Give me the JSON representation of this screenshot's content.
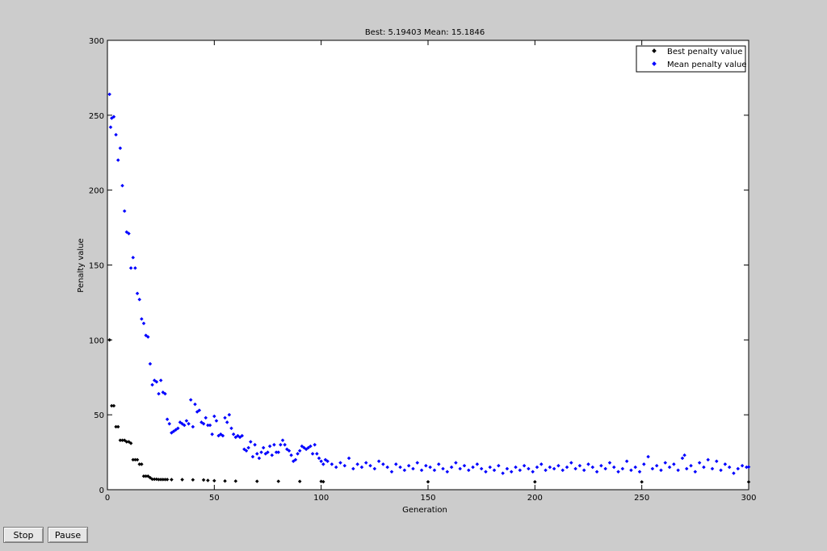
{
  "chart_data": {
    "type": "scatter",
    "title": "Best: 5.19403 Mean: 15.1846",
    "xlabel": "Generation",
    "ylabel": "Penalty value",
    "xlim": [
      0,
      300
    ],
    "ylim": [
      0,
      300
    ],
    "xticks": [
      0,
      50,
      100,
      150,
      200,
      250,
      300
    ],
    "yticks": [
      0,
      50,
      100,
      150,
      200,
      250,
      300
    ],
    "grid": false,
    "legend_position": "top-right",
    "series": [
      {
        "name": "Best penalty value",
        "color": "#000000",
        "points": [
          [
            1,
            100
          ],
          [
            2,
            56
          ],
          [
            3,
            56
          ],
          [
            4,
            42
          ],
          [
            5,
            42
          ],
          [
            6,
            33
          ],
          [
            7,
            33
          ],
          [
            8,
            33
          ],
          [
            9,
            32
          ],
          [
            10,
            32
          ],
          [
            11,
            31
          ],
          [
            12,
            20
          ],
          [
            13,
            20
          ],
          [
            14,
            20
          ],
          [
            15,
            17
          ],
          [
            16,
            17
          ],
          [
            17,
            9
          ],
          [
            18,
            9
          ],
          [
            19,
            9
          ],
          [
            20,
            8
          ],
          [
            21,
            7
          ],
          [
            22,
            7
          ],
          [
            23,
            7
          ],
          [
            24,
            6.8
          ],
          [
            25,
            6.8
          ],
          [
            26,
            6.8
          ],
          [
            27,
            6.8
          ],
          [
            28,
            6.8
          ],
          [
            30,
            6.7
          ],
          [
            35,
            6.7
          ],
          [
            40,
            6.6
          ],
          [
            45,
            6.5
          ],
          [
            47,
            6.2
          ],
          [
            50,
            6
          ],
          [
            55,
            5.8
          ],
          [
            60,
            5.7
          ],
          [
            70,
            5.6
          ],
          [
            80,
            5.6
          ],
          [
            90,
            5.5
          ],
          [
            100,
            5.5
          ],
          [
            101,
            5.3
          ],
          [
            150,
            5.25
          ],
          [
            200,
            5.22
          ],
          [
            250,
            5.2
          ],
          [
            300,
            5.19403
          ]
        ]
      },
      {
        "name": "Mean penalty value",
        "color": "#0000ff",
        "points": [
          [
            1,
            264
          ],
          [
            1.5,
            242
          ],
          [
            2,
            248
          ],
          [
            3,
            249
          ],
          [
            4,
            237
          ],
          [
            5,
            220
          ],
          [
            6,
            228
          ],
          [
            7,
            203
          ],
          [
            8,
            186
          ],
          [
            9,
            172
          ],
          [
            10,
            171
          ],
          [
            11,
            148
          ],
          [
            12,
            155
          ],
          [
            13,
            148
          ],
          [
            14,
            131
          ],
          [
            15,
            127
          ],
          [
            16,
            114
          ],
          [
            17,
            111
          ],
          [
            18,
            103
          ],
          [
            19,
            102
          ],
          [
            20,
            84
          ],
          [
            21,
            70
          ],
          [
            22,
            73
          ],
          [
            23,
            72
          ],
          [
            24,
            64
          ],
          [
            25,
            73
          ],
          [
            26,
            65
          ],
          [
            27,
            64
          ],
          [
            28,
            47
          ],
          [
            29,
            44
          ],
          [
            30,
            38
          ],
          [
            31,
            39
          ],
          [
            32,
            40
          ],
          [
            33,
            41
          ],
          [
            34,
            45
          ],
          [
            35,
            44
          ],
          [
            36,
            43
          ],
          [
            37,
            46
          ],
          [
            38,
            44
          ],
          [
            39,
            60
          ],
          [
            40,
            42
          ],
          [
            41,
            57
          ],
          [
            42,
            52
          ],
          [
            43,
            53
          ],
          [
            44,
            45
          ],
          [
            45,
            44
          ],
          [
            46,
            48
          ],
          [
            47,
            43
          ],
          [
            48,
            43
          ],
          [
            49,
            37
          ],
          [
            50,
            49
          ],
          [
            51,
            46
          ],
          [
            52,
            36
          ],
          [
            53,
            37
          ],
          [
            54,
            36
          ],
          [
            55,
            48
          ],
          [
            56,
            45
          ],
          [
            57,
            50
          ],
          [
            58,
            41
          ],
          [
            59,
            37
          ],
          [
            60,
            35
          ],
          [
            61,
            36
          ],
          [
            62,
            35
          ],
          [
            63,
            36
          ],
          [
            64,
            27
          ],
          [
            65,
            26
          ],
          [
            66,
            28
          ],
          [
            67,
            32
          ],
          [
            68,
            22
          ],
          [
            69,
            30
          ],
          [
            70,
            24
          ],
          [
            71,
            21
          ],
          [
            72,
            25
          ],
          [
            73,
            28
          ],
          [
            74,
            24
          ],
          [
            75,
            25
          ],
          [
            76,
            29
          ],
          [
            77,
            23
          ],
          [
            78,
            30
          ],
          [
            79,
            25
          ],
          [
            80,
            25
          ],
          [
            81,
            30
          ],
          [
            82,
            33
          ],
          [
            83,
            30
          ],
          [
            84,
            27
          ],
          [
            85,
            26
          ],
          [
            86,
            23
          ],
          [
            87,
            19
          ],
          [
            88,
            20
          ],
          [
            89,
            24
          ],
          [
            90,
            26
          ],
          [
            91,
            29
          ],
          [
            92,
            28
          ],
          [
            93,
            27
          ],
          [
            94,
            28
          ],
          [
            95,
            29
          ],
          [
            96,
            24
          ],
          [
            97,
            30
          ],
          [
            98,
            24
          ],
          [
            99,
            21
          ],
          [
            100,
            19
          ],
          [
            101,
            17
          ],
          [
            102,
            20
          ],
          [
            103,
            19
          ],
          [
            105,
            17
          ],
          [
            107,
            15
          ],
          [
            109,
            18
          ],
          [
            111,
            16
          ],
          [
            113,
            21
          ],
          [
            115,
            14
          ],
          [
            117,
            17
          ],
          [
            119,
            15
          ],
          [
            121,
            18
          ],
          [
            123,
            16
          ],
          [
            125,
            14
          ],
          [
            127,
            19
          ],
          [
            129,
            17
          ],
          [
            131,
            15
          ],
          [
            133,
            12
          ],
          [
            135,
            17
          ],
          [
            137,
            15
          ],
          [
            139,
            13
          ],
          [
            141,
            16
          ],
          [
            143,
            14
          ],
          [
            145,
            18
          ],
          [
            147,
            13
          ],
          [
            149,
            16
          ],
          [
            151,
            15
          ],
          [
            153,
            13
          ],
          [
            155,
            17
          ],
          [
            157,
            14
          ],
          [
            159,
            12
          ],
          [
            161,
            15
          ],
          [
            163,
            18
          ],
          [
            165,
            14
          ],
          [
            167,
            16
          ],
          [
            169,
            13
          ],
          [
            171,
            15
          ],
          [
            173,
            17
          ],
          [
            175,
            14
          ],
          [
            177,
            12
          ],
          [
            179,
            15
          ],
          [
            181,
            13
          ],
          [
            183,
            16
          ],
          [
            185,
            11
          ],
          [
            187,
            14
          ],
          [
            189,
            12
          ],
          [
            191,
            15
          ],
          [
            193,
            13
          ],
          [
            195,
            16
          ],
          [
            197,
            14
          ],
          [
            199,
            12
          ],
          [
            201,
            15
          ],
          [
            203,
            17
          ],
          [
            205,
            13
          ],
          [
            207,
            15
          ],
          [
            209,
            14
          ],
          [
            211,
            16
          ],
          [
            213,
            13
          ],
          [
            215,
            15
          ],
          [
            217,
            18
          ],
          [
            219,
            14
          ],
          [
            221,
            16
          ],
          [
            223,
            13
          ],
          [
            225,
            17
          ],
          [
            227,
            15
          ],
          [
            229,
            12
          ],
          [
            231,
            16
          ],
          [
            233,
            14
          ],
          [
            235,
            18
          ],
          [
            237,
            15
          ],
          [
            239,
            12
          ],
          [
            241,
            14
          ],
          [
            243,
            19
          ],
          [
            245,
            13
          ],
          [
            247,
            15
          ],
          [
            249,
            12
          ],
          [
            251,
            17
          ],
          [
            253,
            22
          ],
          [
            255,
            14
          ],
          [
            257,
            16
          ],
          [
            259,
            13
          ],
          [
            261,
            18
          ],
          [
            263,
            15
          ],
          [
            265,
            17
          ],
          [
            267,
            13
          ],
          [
            269,
            21
          ],
          [
            270,
            23
          ],
          [
            271,
            14
          ],
          [
            273,
            16
          ],
          [
            275,
            12
          ],
          [
            277,
            18
          ],
          [
            279,
            15
          ],
          [
            281,
            20
          ],
          [
            283,
            14
          ],
          [
            285,
            19
          ],
          [
            287,
            13
          ],
          [
            289,
            17
          ],
          [
            291,
            15
          ],
          [
            293,
            11
          ],
          [
            295,
            14
          ],
          [
            297,
            16
          ],
          [
            299,
            15
          ],
          [
            300,
            15.1846
          ]
        ]
      }
    ]
  },
  "controls": {
    "stop_label": "Stop",
    "pause_label": "Pause"
  }
}
